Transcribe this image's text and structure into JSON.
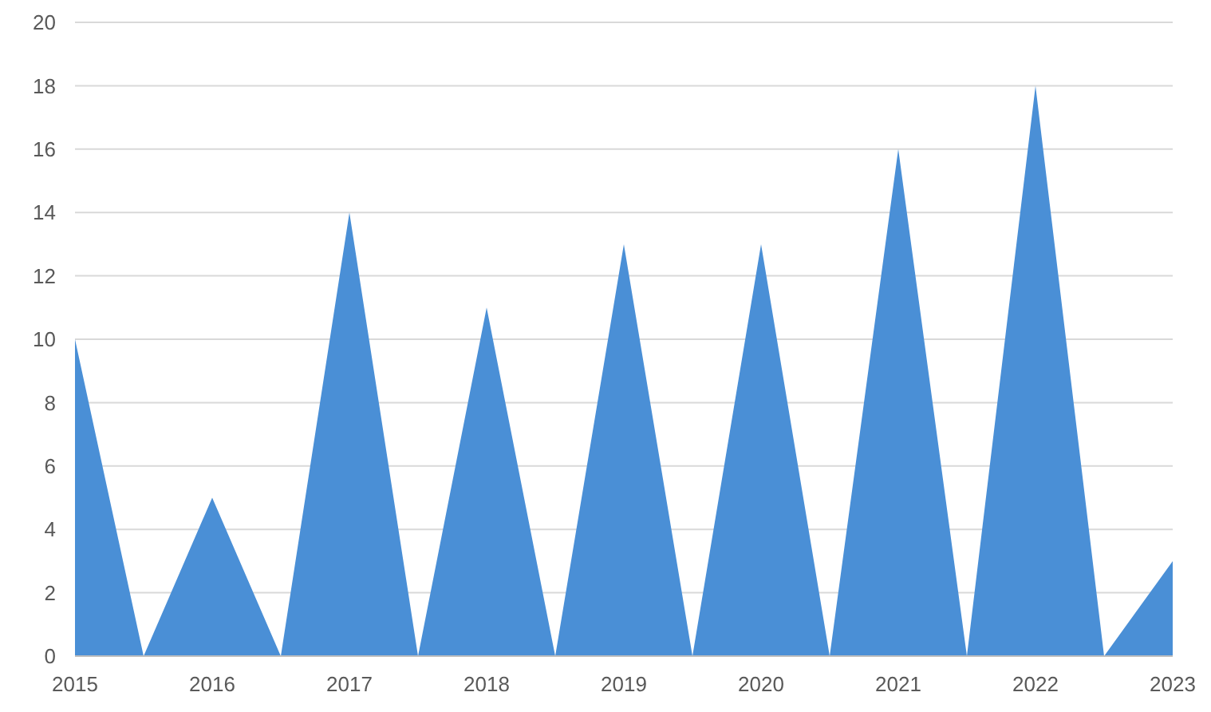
{
  "chart_data": {
    "type": "area",
    "x": [
      2015,
      2015.5,
      2016,
      2016.5,
      2017,
      2017.5,
      2018,
      2018.5,
      2019,
      2019.5,
      2020,
      2020.5,
      2021,
      2021.5,
      2022,
      2022.5,
      2023
    ],
    "series": [
      {
        "color": "#4a8fd6",
        "values": [
          10,
          0,
          5,
          0,
          14,
          0,
          11,
          0,
          13,
          0,
          13,
          0,
          16,
          0,
          18,
          0,
          3
        ]
      }
    ],
    "xlim": [
      2015,
      2023
    ],
    "xticks": [
      2015,
      2016,
      2017,
      2018,
      2019,
      2020,
      2021,
      2022,
      2023
    ],
    "ylim": [
      0,
      20
    ],
    "yticks": [
      0,
      2,
      4,
      6,
      8,
      10,
      12,
      14,
      16,
      18,
      20
    ],
    "grid": "y"
  }
}
